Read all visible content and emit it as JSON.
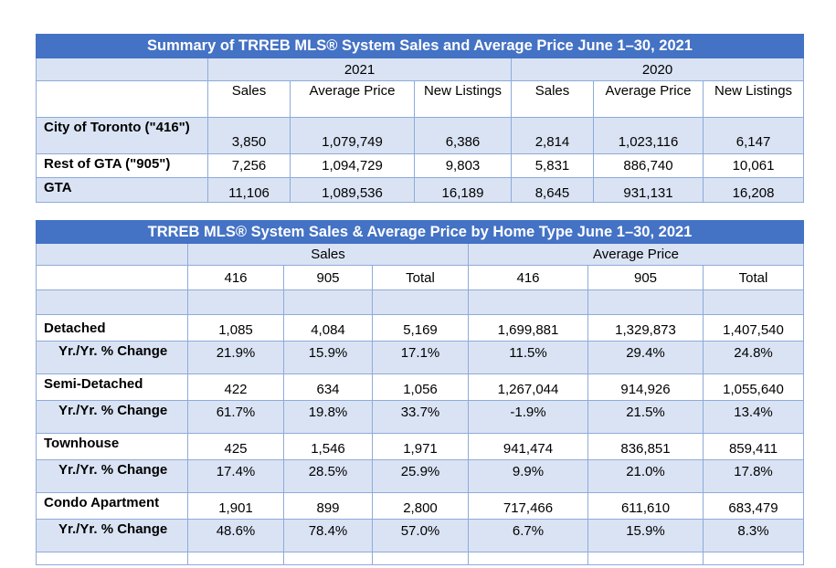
{
  "summary": {
    "title": "Summary of TRREB MLS® System Sales and Average Price June 1–30, 2021",
    "year_2021": "2021",
    "year_2020": "2020",
    "headers": [
      "Sales",
      "Average Price",
      "New Listings",
      "Sales",
      "Average Price",
      "New Listings"
    ],
    "rows": [
      {
        "label": "City of Toronto (\"416\")",
        "values": [
          "3,850",
          "1,079,749",
          "6,386",
          "2,814",
          "1,023,116",
          "6,147"
        ]
      },
      {
        "label": "Rest of GTA (\"905\")",
        "values": [
          "7,256",
          "1,094,729",
          "9,803",
          "5,831",
          "886,740",
          "10,061"
        ]
      },
      {
        "label": "GTA",
        "values": [
          "11,106",
          "1,089,536",
          "16,189",
          "8,645",
          "931,131",
          "16,208"
        ]
      }
    ]
  },
  "hometype": {
    "title": "TRREB MLS® System Sales & Average Price by Home Type June 1–30, 2021",
    "group_sales": "Sales",
    "group_price": "Average Price",
    "headers": [
      "416",
      "905",
      "Total",
      "416",
      "905",
      "Total"
    ],
    "rows": [
      {
        "label": "Detached",
        "values": [
          "1,085",
          "4,084",
          "5,169",
          "1,699,881",
          "1,329,873",
          "1,407,540"
        ]
      },
      {
        "label": "Yr./Yr. % Change",
        "values": [
          "21.9%",
          "15.9%",
          "17.1%",
          "11.5%",
          "29.4%",
          "24.8%"
        ]
      },
      {
        "label": "Semi-Detached",
        "values": [
          "422",
          "634",
          "1,056",
          "1,267,044",
          "914,926",
          "1,055,640"
        ]
      },
      {
        "label": "Yr./Yr. % Change",
        "values": [
          "61.7%",
          "19.8%",
          "33.7%",
          "-1.9%",
          "21.5%",
          "13.4%"
        ]
      },
      {
        "label": "Townhouse",
        "values": [
          "425",
          "1,546",
          "1,971",
          "941,474",
          "836,851",
          "859,411"
        ]
      },
      {
        "label": "Yr./Yr. % Change",
        "values": [
          "17.4%",
          "28.5%",
          "25.9%",
          "9.9%",
          "21.0%",
          "17.8%"
        ]
      },
      {
        "label": "Condo Apartment",
        "values": [
          "1,901",
          "899",
          "2,800",
          "717,466",
          "611,610",
          "683,479"
        ]
      },
      {
        "label": "Yr./Yr. % Change",
        "values": [
          "48.6%",
          "78.4%",
          "57.0%",
          "6.7%",
          "15.9%",
          "8.3%"
        ]
      }
    ]
  }
}
